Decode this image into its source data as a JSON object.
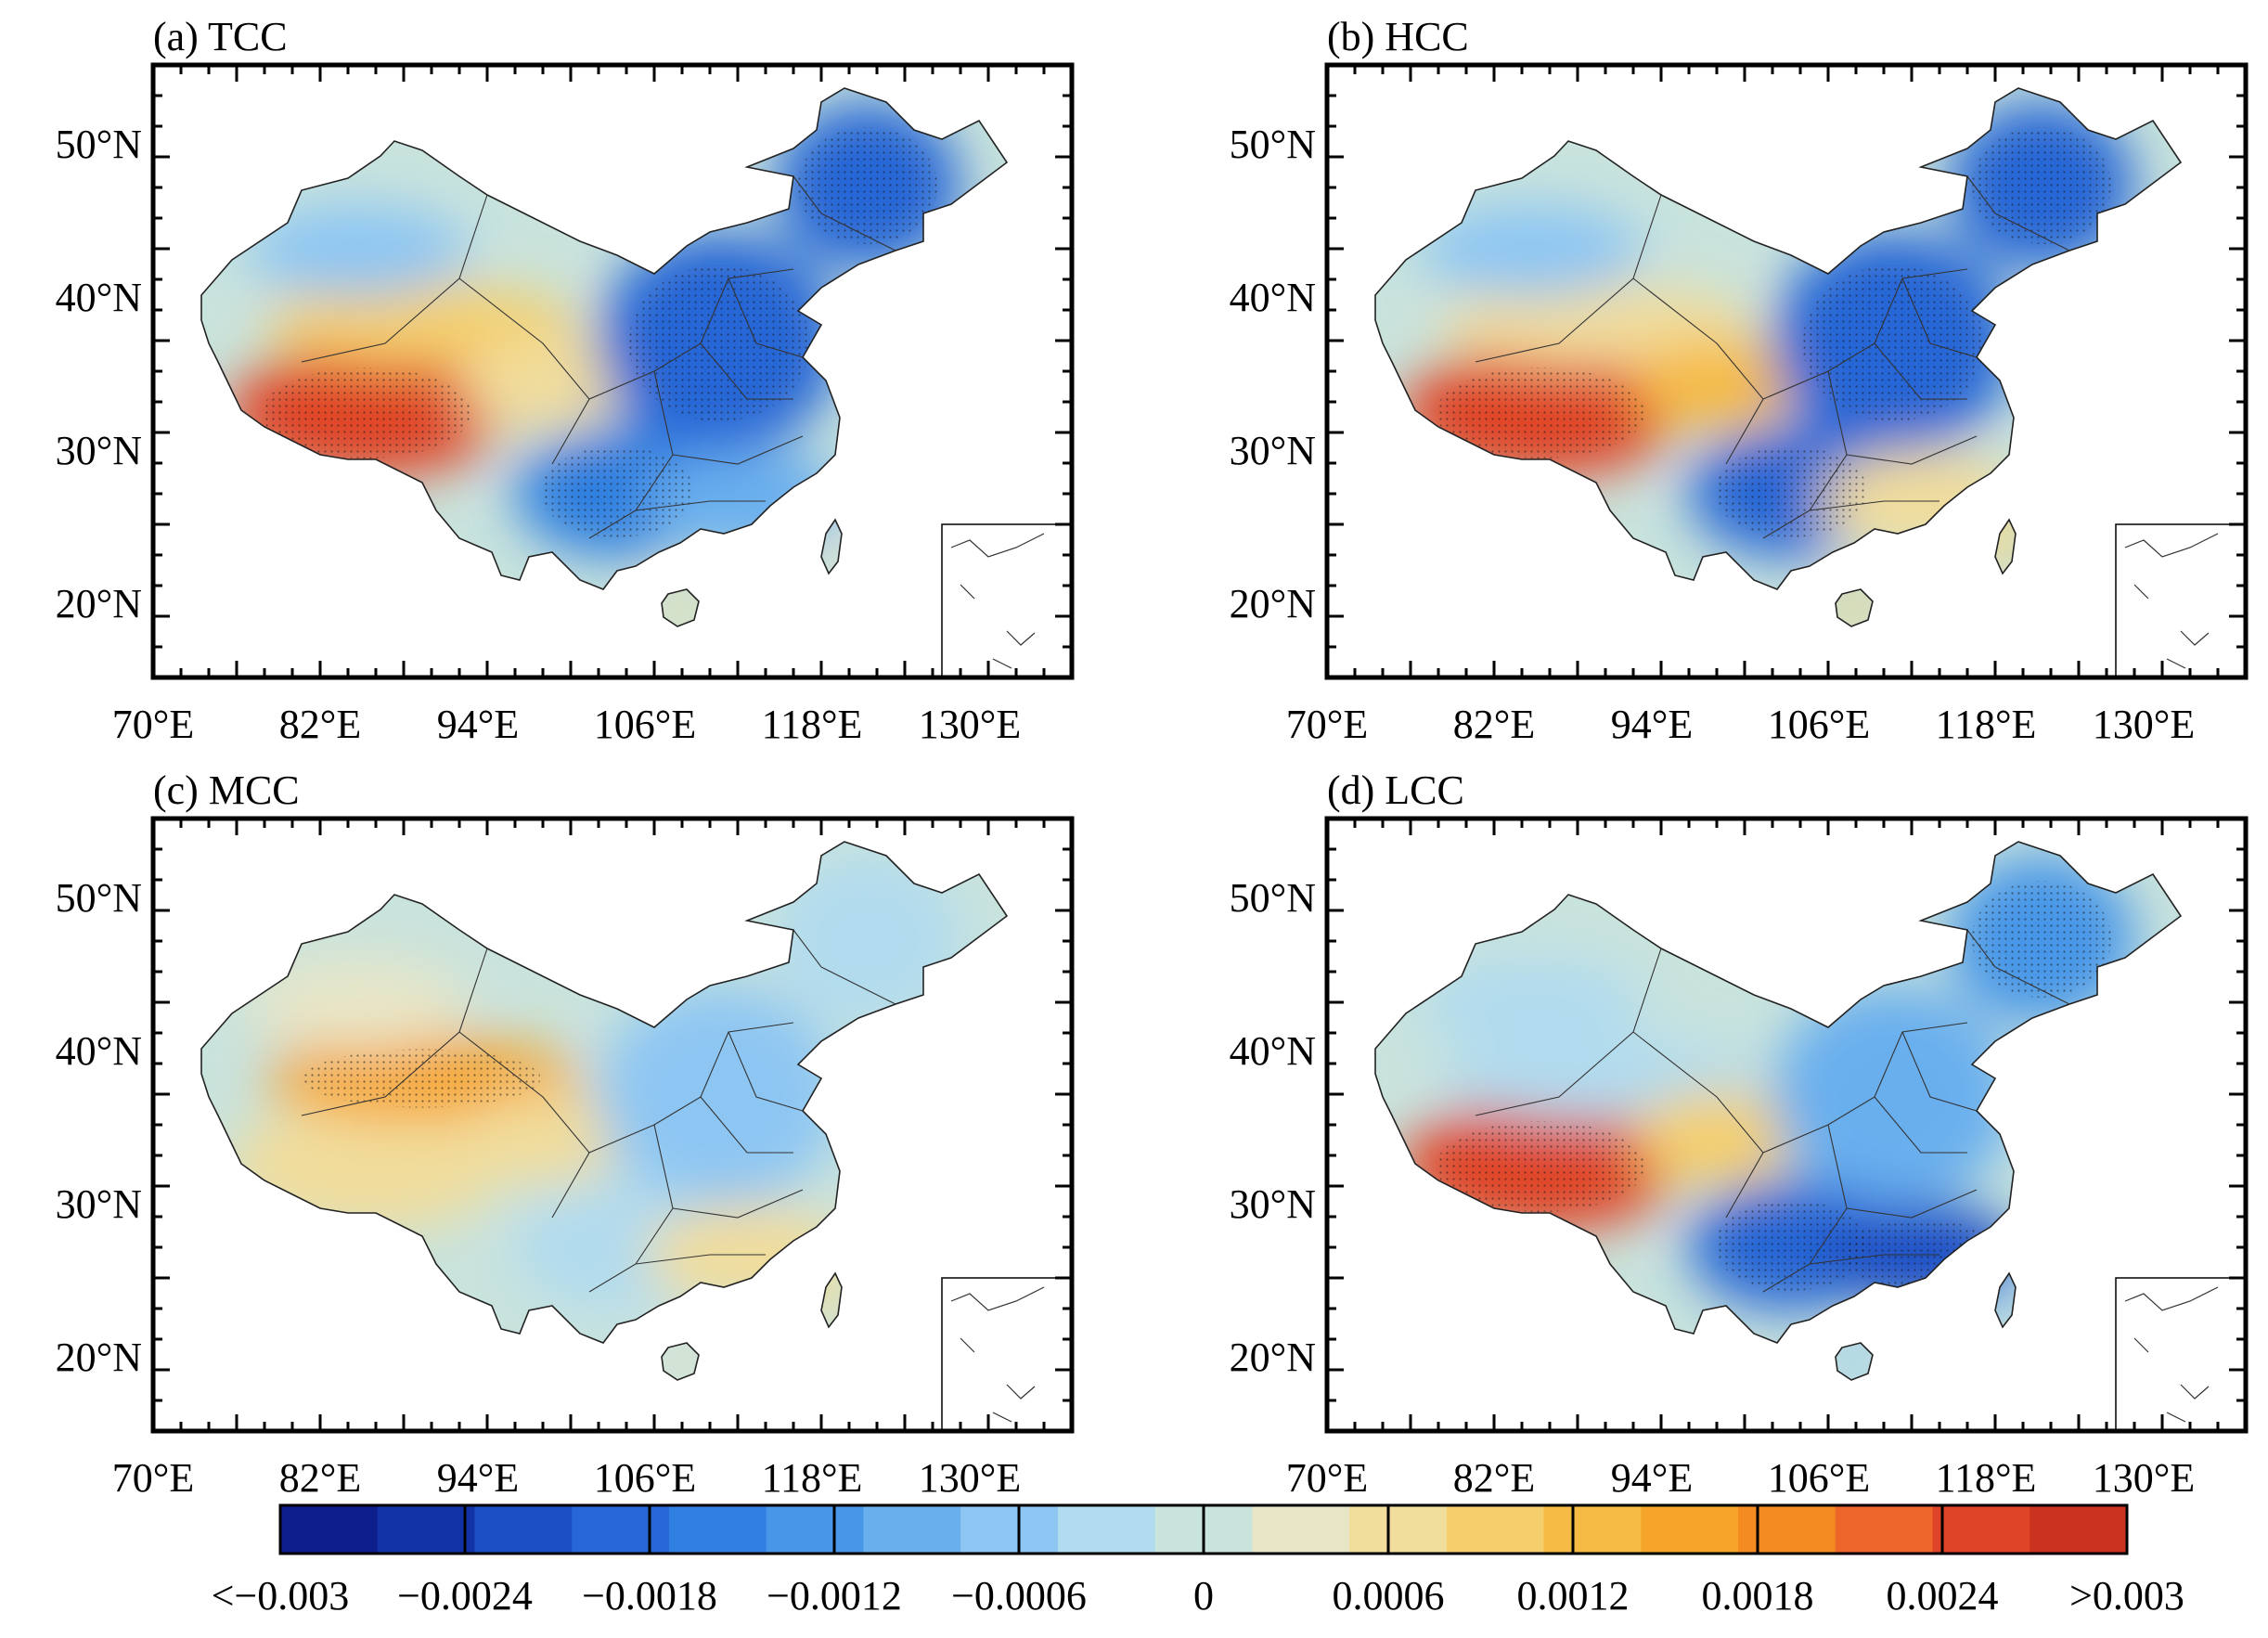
{
  "panels": [
    {
      "id": "a",
      "title": "(a) TCC",
      "variable": "TCC",
      "pattern": {
        "west_tibet": 0.0028,
        "tarim": 0.0012,
        "qaidam": 0.0006,
        "xinjiang_north": -0.0006,
        "north_china": -0.0022,
        "northeast": -0.0022,
        "southwest": -0.0018,
        "south_china": -0.001,
        "taiwan": 0.0004,
        "hainan": 0.0006
      }
    },
    {
      "id": "b",
      "title": "(b) HCC",
      "variable": "HCC",
      "pattern": {
        "west_tibet": 0.003,
        "tarim": 0.0008,
        "qaidam": 0.0014,
        "xinjiang_north": -0.0006,
        "north_china": -0.002,
        "northeast": -0.0022,
        "southwest": -0.0022,
        "south_china": 0.0008,
        "taiwan": 0.001,
        "hainan": 0.0012
      }
    },
    {
      "id": "c",
      "title": "(c) MCC",
      "variable": "MCC",
      "pattern": {
        "west_tibet": 0.0006,
        "tarim": 0.0018,
        "qaidam": 0.0008,
        "xinjiang_north": 0.0004,
        "north_china": -0.0008,
        "northeast": -0.0004,
        "southwest": -0.0004,
        "south_china": 0.0008,
        "taiwan": 0.0006,
        "hainan": 0.0004
      }
    },
    {
      "id": "d",
      "title": "(d) LCC",
      "variable": "LCC",
      "pattern": {
        "west_tibet": 0.0028,
        "tarim": -0.0002,
        "qaidam": 0.0012,
        "xinjiang_north": -0.0004,
        "north_china": -0.0012,
        "northeast": -0.0016,
        "southwest": -0.002,
        "south_china": -0.0026,
        "taiwan": -0.0008,
        "hainan": -0.0008
      }
    }
  ],
  "axes": {
    "lon_labels": [
      "70°E",
      "82°E",
      "94°E",
      "106°E",
      "118°E",
      "130°E"
    ],
    "lat_labels": [
      "50°N",
      "40°N",
      "30°N",
      "20°N"
    ]
  },
  "colorbar": {
    "colors": [
      "#0d1f8c",
      "#1233a8",
      "#1c4fc6",
      "#2766d6",
      "#2f7fe0",
      "#4796e8",
      "#69afee",
      "#8dc6f3",
      "#b1dbef",
      "#c9e3dd",
      "#e8e6c7",
      "#f1dd9c",
      "#f5cf6c",
      "#f6bb45",
      "#f6a52a",
      "#f48a22",
      "#ee6629",
      "#e04428",
      "#c93320"
    ],
    "labels": [
      "<−0.003",
      "−0.0024",
      "−0.0018",
      "−0.0012",
      "−0.0006",
      "0",
      "0.0006",
      "0.0012",
      "0.0018",
      "0.0024",
      ">0.003"
    ]
  }
}
